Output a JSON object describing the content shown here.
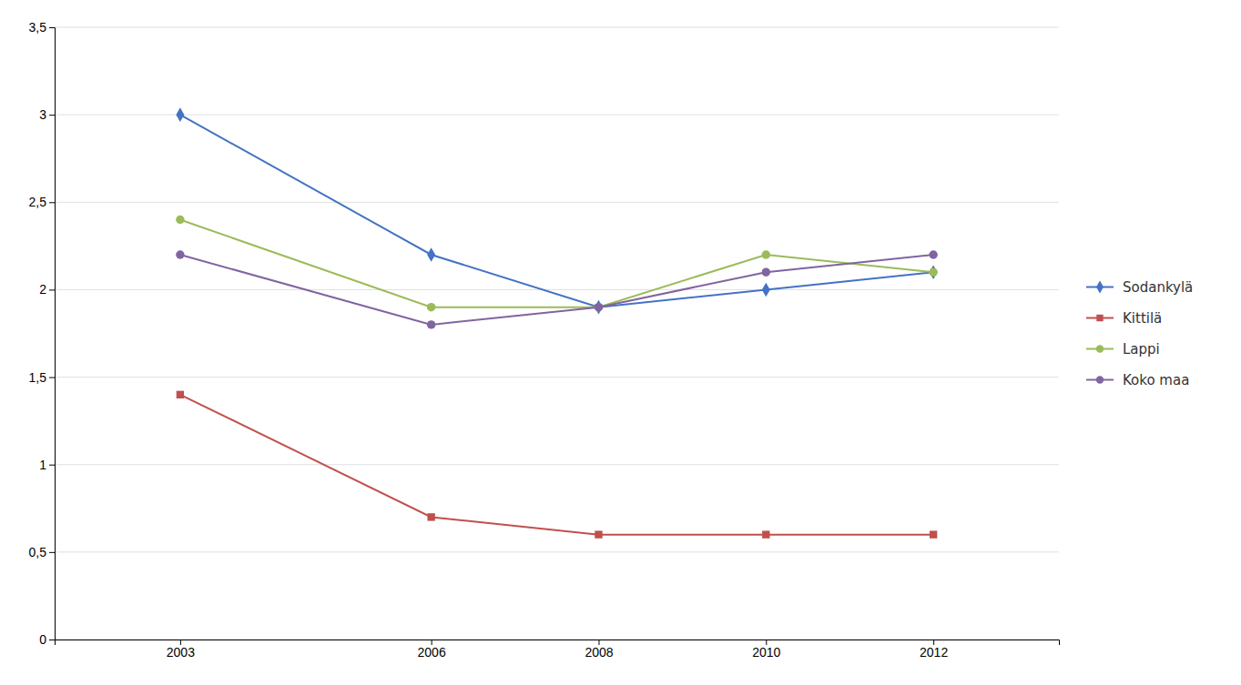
{
  "chart_data": {
    "type": "line",
    "x": [
      2003,
      2006,
      2008,
      2010,
      2012
    ],
    "series": [
      {
        "name": "Sodankylä",
        "color": "#4472C4",
        "marker": "diamond",
        "values": [
          3.0,
          2.2,
          1.9,
          2.0,
          2.1
        ]
      },
      {
        "name": "Kittilä",
        "color": "#C0504D",
        "marker": "square",
        "values": [
          1.4,
          0.7,
          0.6,
          0.6,
          0.6
        ]
      },
      {
        "name": "Lappi",
        "color": "#9BBB59",
        "marker": "circle",
        "values": [
          2.4,
          1.9,
          1.9,
          2.2,
          2.1
        ]
      },
      {
        "name": "Koko maa",
        "color": "#8064A2",
        "marker": "circle",
        "values": [
          2.2,
          1.8,
          1.9,
          2.1,
          2.2
        ]
      }
    ],
    "xlim": [
      2001.5,
      2013.5
    ],
    "xticks": [
      2003,
      2006,
      2008,
      2010,
      2012
    ],
    "ylim": [
      0,
      3.5
    ],
    "yticks": [
      0,
      {
        "value": 0.5,
        "label": "0,5"
      },
      1,
      {
        "value": 1.5,
        "label": "1,5"
      },
      2,
      {
        "value": 2.5,
        "label": "2,5"
      },
      3,
      {
        "value": 3.5,
        "label": "3,5"
      }
    ],
    "grid": "y",
    "legend": "right"
  }
}
